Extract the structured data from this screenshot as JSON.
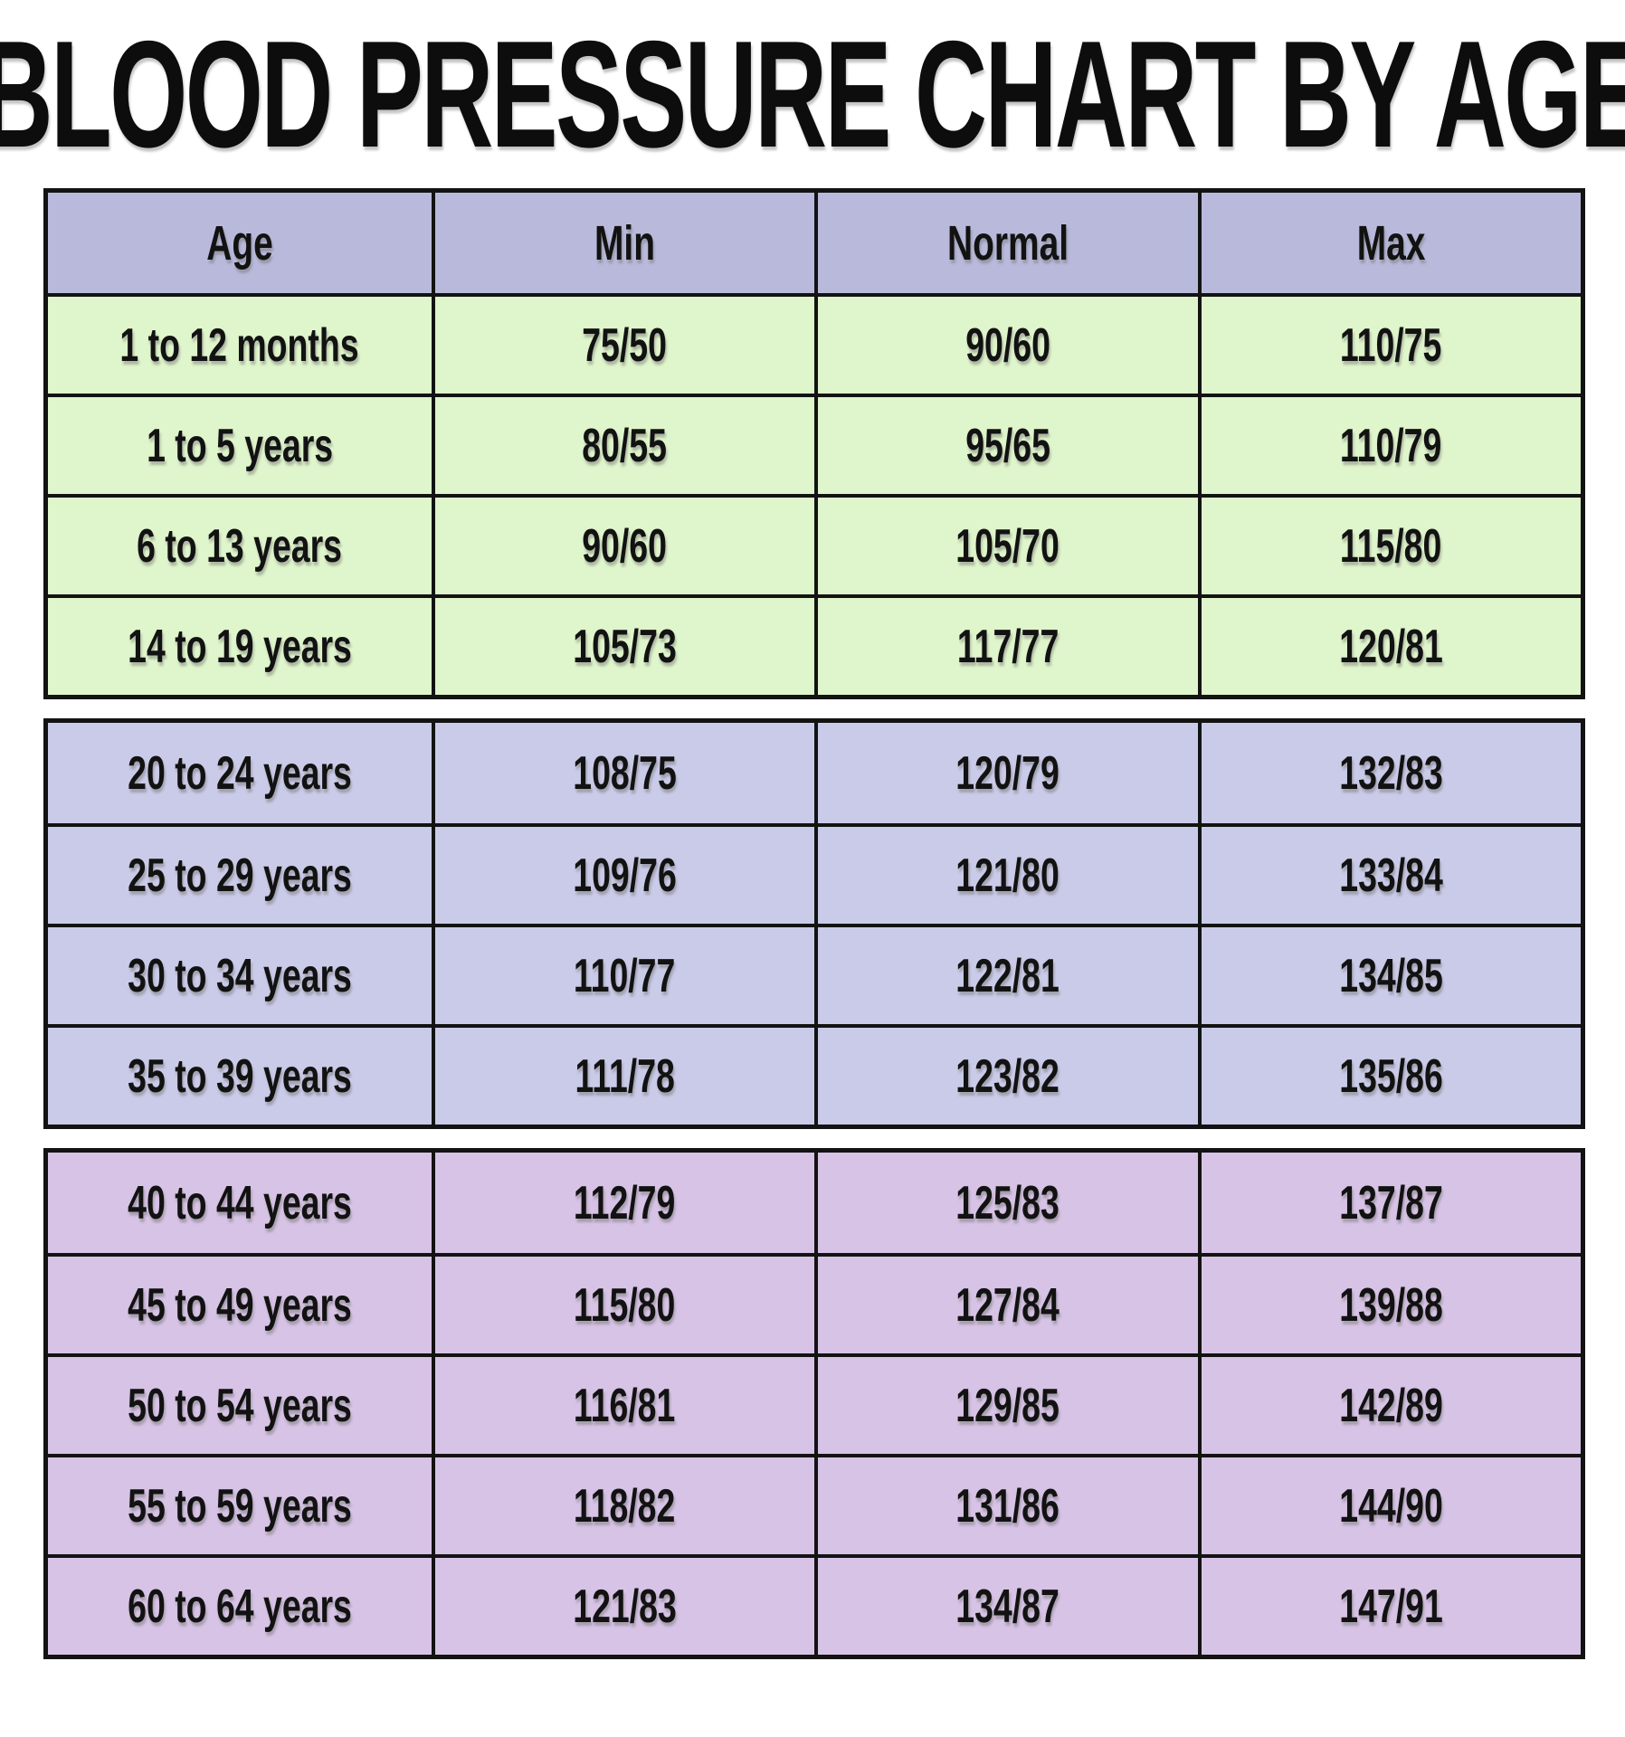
{
  "chart_data": {
    "type": "table",
    "title": "BLOOD PRESSURE CHART BY AGE",
    "columns": [
      "Age",
      "Min",
      "Normal",
      "Max"
    ],
    "groups": [
      {
        "name": "infants-and-teens",
        "rows": [
          {
            "age": "1 to 12 months",
            "min": "75/50",
            "normal": "90/60",
            "max": "110/75"
          },
          {
            "age": "1 to 5 years",
            "min": "80/55",
            "normal": "95/65",
            "max": "110/79"
          },
          {
            "age": "6 to 13 years",
            "min": "90/60",
            "normal": "105/70",
            "max": "115/80"
          },
          {
            "age": "14 to 19 years",
            "min": "105/73",
            "normal": "117/77",
            "max": "120/81"
          }
        ]
      },
      {
        "name": "adults-20-39",
        "rows": [
          {
            "age": "20 to 24 years",
            "min": "108/75",
            "normal": "120/79",
            "max": "132/83"
          },
          {
            "age": "25 to 29 years",
            "min": "109/76",
            "normal": "121/80",
            "max": "133/84"
          },
          {
            "age": "30 to 34 years",
            "min": "110/77",
            "normal": "122/81",
            "max": "134/85"
          },
          {
            "age": "35 to 39 years",
            "min": "111/78",
            "normal": "123/82",
            "max": "135/86"
          }
        ]
      },
      {
        "name": "adults-40-64",
        "rows": [
          {
            "age": "40 to 44 years",
            "min": "112/79",
            "normal": "125/83",
            "max": "137/87"
          },
          {
            "age": "45 to 49 years",
            "min": "115/80",
            "normal": "127/84",
            "max": "139/88"
          },
          {
            "age": "50 to 54 years",
            "min": "116/81",
            "normal": "129/85",
            "max": "142/89"
          },
          {
            "age": "55 to 59 years",
            "min": "118/82",
            "normal": "131/86",
            "max": "144/90"
          },
          {
            "age": "60 to 64 years",
            "min": "121/83",
            "normal": "134/87",
            "max": "147/91"
          }
        ]
      }
    ],
    "colors": {
      "header_bg": "#b9badb",
      "group1_bg": "#dff5cb",
      "group2_bg": "#cacbe8",
      "group3_bg": "#d7c3e5",
      "border": "#131313",
      "text": "#121212",
      "page_bg": "#ffffff"
    },
    "layout": {
      "legend": "none",
      "grid": "full table borders",
      "row_groups_separated_by_white_gaps": true
    }
  }
}
